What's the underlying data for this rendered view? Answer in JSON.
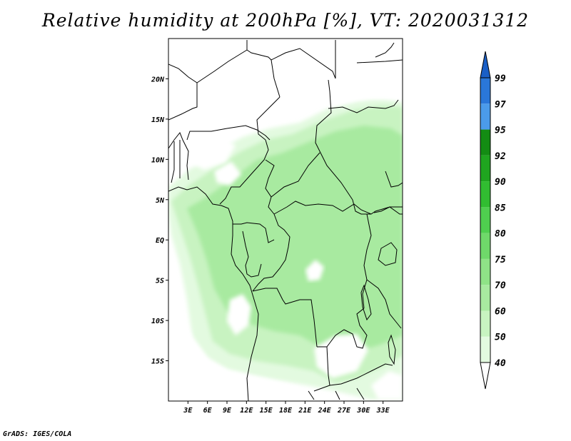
{
  "title": "Relative humidity at 200hPa [%], VT: 2020031312",
  "credit": "GrADS: IGES/COLA",
  "map": {
    "lon_range": [
      0,
      36
    ],
    "lat_range": [
      -20,
      25
    ],
    "lon_ticks": [
      {
        "value": 3,
        "label": "3E"
      },
      {
        "value": 6,
        "label": "6E"
      },
      {
        "value": 9,
        "label": "9E"
      },
      {
        "value": 12,
        "label": "12E"
      },
      {
        "value": 15,
        "label": "15E"
      },
      {
        "value": 18,
        "label": "18E"
      },
      {
        "value": 21,
        "label": "21E"
      },
      {
        "value": 24,
        "label": "24E"
      },
      {
        "value": 27,
        "label": "27E"
      },
      {
        "value": 30,
        "label": "30E"
      },
      {
        "value": 33,
        "label": "33E"
      }
    ],
    "lat_ticks": [
      {
        "value": 20,
        "label": "20N"
      },
      {
        "value": 15,
        "label": "15N"
      },
      {
        "value": 10,
        "label": "10N"
      },
      {
        "value": 5,
        "label": "5N"
      },
      {
        "value": 0,
        "label": "EQ"
      },
      {
        "value": -5,
        "label": "5S"
      },
      {
        "value": -10,
        "label": "10S"
      },
      {
        "value": -15,
        "label": "15S"
      }
    ],
    "field": "Relative humidity",
    "level": "200hPa",
    "units": "%"
  },
  "colorbar": {
    "levels": [
      "40",
      "50",
      "60",
      "70",
      "75",
      "80",
      "85",
      "90",
      "92",
      "95",
      "97",
      "99"
    ],
    "colors": [
      "#ffffff",
      "#e3fae0",
      "#c8f3c1",
      "#a8eaa0",
      "#8fe387",
      "#6fd96a",
      "#4fcf4f",
      "#31bd31",
      "#1fa51f",
      "#138c13",
      "#4b9bea",
      "#2a77d9",
      "#1a5fc6"
    ]
  }
}
